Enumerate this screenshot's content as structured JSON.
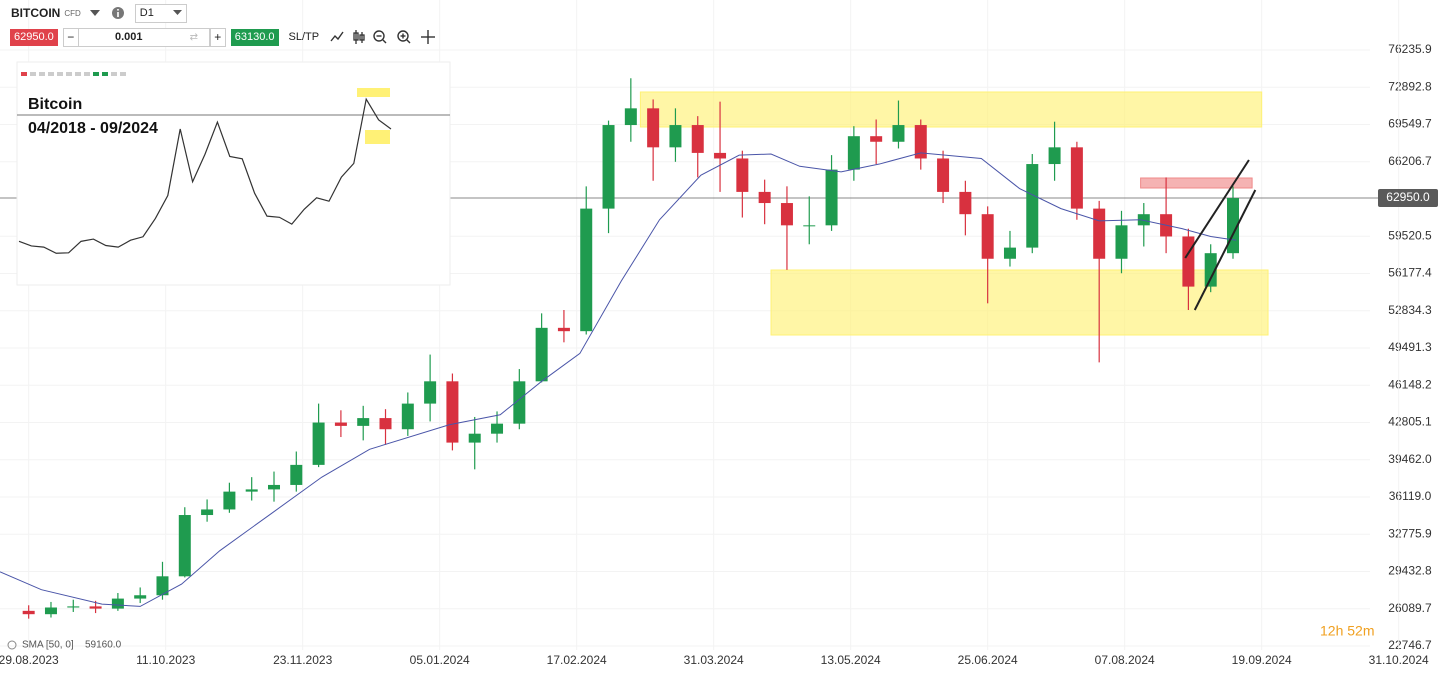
{
  "toolbar": {
    "symbol": "BITCOIN",
    "instrument": "CFD",
    "timeframe": "D1",
    "sell_price": "62950.0",
    "quantity": "0.001",
    "buy_price": "63130.0",
    "sltp": "SL/TP"
  },
  "chart_data": {
    "type": "candlestick",
    "x": [
      0,
      7,
      14,
      21,
      28,
      35,
      42,
      49,
      56,
      63,
      70,
      77,
      84,
      91,
      98,
      105,
      112,
      119,
      126,
      133,
      140,
      147,
      154,
      161,
      168,
      175,
      182,
      189,
      196,
      203,
      210,
      217,
      224,
      231,
      238,
      245,
      252,
      259,
      266,
      273,
      280,
      287,
      294,
      301,
      308,
      315,
      322,
      329,
      336,
      343,
      350,
      357,
      364,
      371,
      378
    ],
    "open": [
      25900,
      25600,
      26200,
      26300,
      26100,
      27000,
      27300,
      29000,
      34500,
      35000,
      36600,
      36800,
      37200,
      39000,
      42800,
      42500,
      43200,
      42200,
      44500,
      46500,
      41000,
      41800,
      42700,
      46500,
      51300,
      51000,
      62000,
      69500,
      71000,
      67500,
      69500,
      67000,
      66500,
      63500,
      62500,
      60500,
      60500,
      65500,
      68500,
      68000,
      69500,
      66500,
      63500,
      61500,
      57500,
      58500,
      66000,
      67500,
      62000,
      57500,
      60500,
      61500,
      59500,
      55000,
      58000
    ],
    "high": [
      26400,
      26700,
      26900,
      26800,
      27500,
      28000,
      30300,
      35200,
      35900,
      37400,
      37900,
      38400,
      40200,
      44500,
      43900,
      44300,
      44000,
      45500,
      48900,
      47200,
      43300,
      43800,
      47600,
      52600,
      52900,
      64000,
      69900,
      73700,
      71800,
      71000,
      70300,
      71600,
      67200,
      64600,
      64000,
      63100,
      66800,
      69400,
      70000,
      71700,
      70000,
      67200,
      64500,
      62200,
      60000,
      66900,
      69800,
      68000,
      62700,
      61800,
      62500,
      64800,
      60200,
      58800,
      64000
    ],
    "low": [
      25200,
      25300,
      25800,
      25700,
      25900,
      26600,
      26900,
      28900,
      33900,
      34700,
      35800,
      35700,
      36600,
      38800,
      41500,
      41200,
      40800,
      41600,
      42900,
      40300,
      38600,
      41000,
      42200,
      46400,
      50000,
      50700,
      59800,
      68000,
      64500,
      66200,
      64800,
      63500,
      61200,
      60600,
      56500,
      58800,
      60000,
      64500,
      66000,
      67400,
      65500,
      62500,
      59600,
      53500,
      56800,
      58000,
      64500,
      61000,
      48200,
      56200,
      58600,
      58000,
      52900,
      54500,
      57500
    ],
    "close": [
      25600,
      26200,
      26300,
      26100,
      27000,
      27300,
      29000,
      34500,
      35000,
      36600,
      36800,
      37200,
      39000,
      42800,
      42500,
      43200,
      42200,
      44500,
      46500,
      41000,
      41800,
      42700,
      46500,
      51300,
      51000,
      62000,
      69500,
      71000,
      67500,
      69500,
      67000,
      66500,
      63500,
      62500,
      60500,
      60500,
      65500,
      68500,
      68000,
      69500,
      66500,
      63500,
      61500,
      57500,
      58500,
      66000,
      67500,
      62000,
      57500,
      60500,
      61500,
      59500,
      55000,
      58000,
      62950
    ],
    "up_color": "#1f9b4f",
    "down_color": "#d8313f",
    "xlim": [
      -9,
      421
    ],
    "xticks": [
      {
        "value": 0,
        "label": "29.08.2023"
      },
      {
        "value": 43,
        "label": "11.10.2023"
      },
      {
        "value": 86,
        "label": "23.11.2023"
      },
      {
        "value": 129,
        "label": "05.01.2024"
      },
      {
        "value": 172,
        "label": "17.02.2024"
      },
      {
        "value": 215,
        "label": "31.03.2024"
      },
      {
        "value": 258,
        "label": "13.05.2024"
      },
      {
        "value": 301,
        "label": "25.06.2024"
      },
      {
        "value": 344,
        "label": "07.08.2024"
      },
      {
        "value": 387,
        "label": "19.09.2024"
      },
      {
        "value": 430,
        "label": "31.10.2024"
      }
    ],
    "ylim": [
      22386,
      80723
    ],
    "yticks": [
      {
        "value": 76235.9,
        "label": "76235.9"
      },
      {
        "value": 72892.8,
        "label": "72892.8"
      },
      {
        "value": 69549.7,
        "label": "69549.7"
      },
      {
        "value": 66206.7,
        "label": "66206.7"
      },
      {
        "value": 59520.5,
        "label": "59520.5"
      },
      {
        "value": 56177.4,
        "label": "56177.4"
      },
      {
        "value": 52834.3,
        "label": "52834.3"
      },
      {
        "value": 49491.3,
        "label": "49491.3"
      },
      {
        "value": 46148.2,
        "label": "46148.2"
      },
      {
        "value": 42805.1,
        "label": "42805.1"
      },
      {
        "value": 39462,
        "label": "39462.0"
      },
      {
        "value": 36119,
        "label": "36119.0"
      },
      {
        "value": 32775.9,
        "label": "32775.9"
      },
      {
        "value": 29432.8,
        "label": "29432.8"
      },
      {
        "value": 26089.7,
        "label": "26089.7"
      },
      {
        "value": 22746.7,
        "label": "22746.7"
      }
    ],
    "grid": true,
    "current_price": {
      "value": 62950,
      "label": "62950.0"
    },
    "sma": {
      "name": "SMA [50, 0]",
      "color": "#4a55a8",
      "last": {
        "value": 59160,
        "label": "59160.0"
      },
      "x": [
        -9,
        4,
        23,
        35,
        48,
        60,
        76,
        92,
        107,
        132,
        148,
        161,
        173,
        186,
        198,
        211,
        223,
        233,
        242,
        255,
        267,
        280,
        299,
        311,
        324,
        336,
        349,
        362,
        371,
        379
      ],
      "values": [
        29400,
        27800,
        26500,
        26300,
        28300,
        31300,
        34600,
        37900,
        40400,
        42600,
        43500,
        46500,
        49000,
        55500,
        61000,
        65000,
        66800,
        66900,
        65800,
        65300,
        66000,
        67000,
        66500,
        63800,
        62000,
        60900,
        61000,
        60200,
        59500,
        59160
      ]
    },
    "zones": [
      {
        "x": [
          192,
          387
        ],
        "y": [
          69325,
          72466
        ],
        "color": "#fff176"
      },
      {
        "x": [
          233,
          389
        ],
        "y": [
          50657,
          56491
        ],
        "color": "#fff176"
      },
      {
        "x": [
          349,
          384
        ],
        "y": [
          63851,
          64748
        ],
        "color": "#ef8a8a"
      }
    ],
    "trendlines": [
      {
        "x": [
          363,
          383
        ],
        "y": [
          57568,
          66363
        ]
      },
      {
        "x": [
          366,
          385
        ],
        "y": [
          52900,
          63670
        ]
      }
    ],
    "countdown": "12h 52m"
  },
  "inset": {
    "title": "Bitcoin",
    "subtitle": "04/2018 - 09/2024",
    "ylim": [
      0,
      75000
    ],
    "values": [
      9000,
      7000,
      6500,
      3800,
      4000,
      9000,
      10000,
      7200,
      6500,
      9500,
      11000,
      19000,
      29000,
      58000,
      35000,
      47000,
      61000,
      46000,
      45000,
      30000,
      20000,
      19500,
      16500,
      23000,
      28000,
      26500,
      37000,
      43000,
      71000,
      62000,
      58000
    ]
  }
}
